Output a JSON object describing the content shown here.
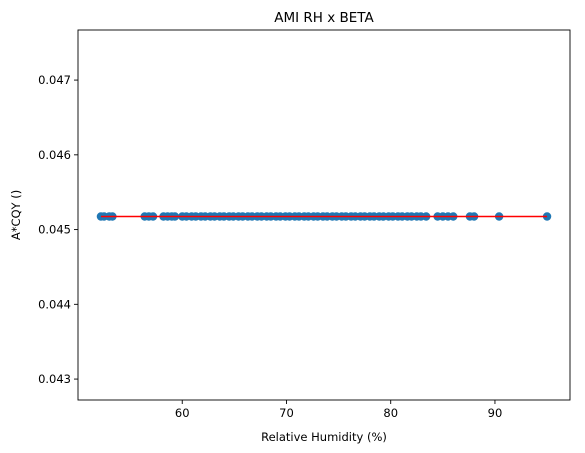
{
  "chart_data": {
    "type": "scatter",
    "title": "AMI RH x BETA",
    "xlabel": "Relative Humidity (%)",
    "ylabel": "A*CQY ()",
    "xlim": [
      50.0,
      97.2
    ],
    "ylim": [
      0.04272,
      0.04767
    ],
    "xticks": [
      60,
      70,
      80,
      90
    ],
    "yticks": [
      0.043,
      0.044,
      0.045,
      0.046,
      0.047
    ],
    "xtick_labels": [
      "60",
      "70",
      "80",
      "90"
    ],
    "ytick_labels": [
      "0.043",
      "0.044",
      "0.045",
      "0.046",
      "0.047"
    ],
    "grid": false,
    "series": [
      {
        "kind": "points",
        "color": "#1f77b4",
        "x": [
          52.2,
          52.5,
          53.0,
          53.3,
          56.4,
          56.8,
          57.2,
          58.2,
          58.6,
          59.0,
          59.3,
          60.0,
          60.4,
          60.9,
          61.3,
          61.8,
          62.2,
          62.7,
          63.1,
          63.6,
          64.0,
          64.5,
          64.9,
          65.4,
          65.8,
          66.3,
          66.7,
          67.2,
          67.6,
          68.1,
          68.5,
          69.0,
          69.4,
          69.9,
          70.3,
          70.8,
          71.2,
          71.7,
          72.1,
          72.6,
          73.0,
          73.5,
          73.9,
          74.4,
          74.8,
          75.3,
          75.7,
          76.2,
          76.6,
          77.1,
          77.5,
          78.0,
          78.4,
          78.9,
          79.3,
          79.8,
          80.2,
          80.7,
          81.1,
          81.6,
          82.0,
          82.5,
          82.9,
          83.4,
          84.5,
          85.0,
          85.5,
          86.0,
          87.6,
          88.0,
          90.4,
          95.0
        ],
        "y": [
          0.045175,
          0.045175,
          0.045175,
          0.045175,
          0.045175,
          0.045175,
          0.045175,
          0.045175,
          0.045175,
          0.045175,
          0.045175,
          0.045175,
          0.045175,
          0.045175,
          0.045175,
          0.045175,
          0.045175,
          0.045175,
          0.045175,
          0.045175,
          0.045175,
          0.045175,
          0.045175,
          0.045175,
          0.045175,
          0.045175,
          0.045175,
          0.045175,
          0.045175,
          0.045175,
          0.045175,
          0.045175,
          0.045175,
          0.045175,
          0.045175,
          0.045175,
          0.045175,
          0.045175,
          0.045175,
          0.045175,
          0.045175,
          0.045175,
          0.045175,
          0.045175,
          0.045175,
          0.045175,
          0.045175,
          0.045175,
          0.045175,
          0.045175,
          0.045175,
          0.045175,
          0.045175,
          0.045175,
          0.045175,
          0.045175,
          0.045175,
          0.045175,
          0.045175,
          0.045175,
          0.045175,
          0.045175,
          0.045175,
          0.045175,
          0.045175,
          0.045175,
          0.045175,
          0.045175,
          0.045175,
          0.045175,
          0.045175,
          0.045175
        ]
      },
      {
        "kind": "line",
        "color": "#ff0000",
        "x": [
          52.2,
          95.0
        ],
        "y": [
          0.045175,
          0.045175
        ]
      }
    ]
  }
}
